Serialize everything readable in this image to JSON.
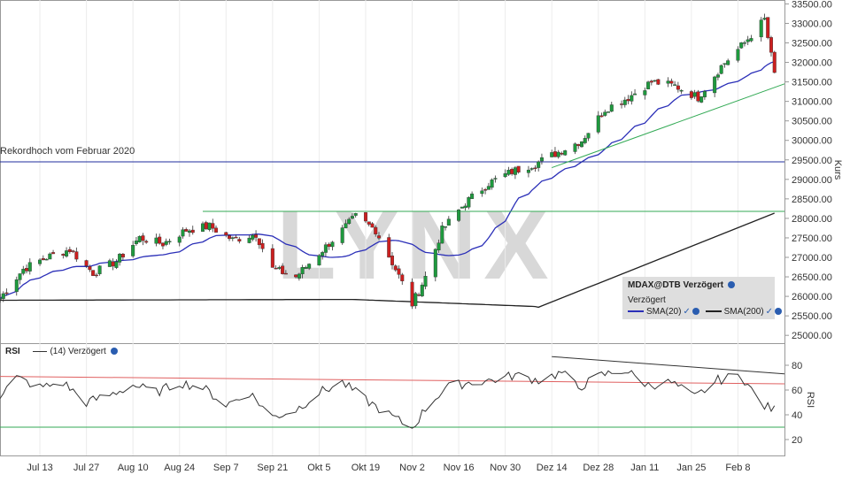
{
  "chart_data": [
    {
      "type": "candlestick",
      "title": "",
      "ylabel": "Kurs",
      "ylim": [
        24800,
        33600
      ],
      "y_ticks": [
        "25000.00",
        "25500.00",
        "26000.00",
        "26500.00",
        "27000.00",
        "27500.00",
        "28000.00",
        "28500.00",
        "29000.00",
        "29500.00",
        "30000.00",
        "30500.00",
        "31000.00",
        "31500.00",
        "32000.00",
        "32500.00",
        "33000.00",
        "33500.00"
      ],
      "x_ticks": [
        {
          "label": "Jul 13",
          "date": "2020-07-13"
        },
        {
          "label": "Jul 27",
          "date": "2020-07-27"
        },
        {
          "label": "Aug 10",
          "date": "2020-08-10"
        },
        {
          "label": "Aug 24",
          "date": "2020-08-24"
        },
        {
          "label": "Sep 7",
          "date": "2020-09-07"
        },
        {
          "label": "Sep 21",
          "date": "2020-09-21"
        },
        {
          "label": "Okt 5",
          "date": "2020-10-05"
        },
        {
          "label": "Okt 19",
          "date": "2020-10-19"
        },
        {
          "label": "Nov 2",
          "date": "2020-11-02"
        },
        {
          "label": "Nov 16",
          "date": "2020-11-16"
        },
        {
          "label": "Nov 30",
          "date": "2020-11-30"
        },
        {
          "label": "Dez 14",
          "date": "2020-12-14"
        },
        {
          "label": "Dez 28",
          "date": "2020-12-28"
        },
        {
          "label": "Jan 11",
          "date": "2021-01-11"
        },
        {
          "label": "Jan 25",
          "date": "2021-01-25"
        },
        {
          "label": "Feb 8",
          "date": "2021-02-08"
        }
      ],
      "x_range": [
        "2020-07-01",
        "2021-02-22"
      ],
      "close_anchors": [
        [
          "2020-07-01",
          25950
        ],
        [
          "2020-07-08",
          26700
        ],
        [
          "2020-07-15",
          27000
        ],
        [
          "2020-07-22",
          27200
        ],
        [
          "2020-07-29",
          26600
        ],
        [
          "2020-08-05",
          26900
        ],
        [
          "2020-08-12",
          27500
        ],
        [
          "2020-08-19",
          27350
        ],
        [
          "2020-08-26",
          27700
        ],
        [
          "2020-09-02",
          27800
        ],
        [
          "2020-09-09",
          27450
        ],
        [
          "2020-09-16",
          27600
        ],
        [
          "2020-09-21",
          26700
        ],
        [
          "2020-09-28",
          26500
        ],
        [
          "2020-10-05",
          27100
        ],
        [
          "2020-10-12",
          27700
        ],
        [
          "2020-10-16",
          28050
        ],
        [
          "2020-10-22",
          27700
        ],
        [
          "2020-10-28",
          26700
        ],
        [
          "2020-11-02",
          25800
        ],
        [
          "2020-11-06",
          26500
        ],
        [
          "2020-11-11",
          27700
        ],
        [
          "2020-11-18",
          28400
        ],
        [
          "2020-11-25",
          28900
        ],
        [
          "2020-12-02",
          29200
        ],
        [
          "2020-12-09",
          29400
        ],
        [
          "2020-12-16",
          29700
        ],
        [
          "2020-12-23",
          30000
        ],
        [
          "2020-12-30",
          30800
        ],
        [
          "2021-01-06",
          31100
        ],
        [
          "2021-01-13",
          31500
        ],
        [
          "2021-01-20",
          31400
        ],
        [
          "2021-01-27",
          31100
        ],
        [
          "2021-02-03",
          31900
        ],
        [
          "2021-02-10",
          32500
        ],
        [
          "2021-02-16",
          33100
        ],
        [
          "2021-02-19",
          31700
        ]
      ],
      "lines": [
        {
          "name": "Rekordhoch vom Februar 2020",
          "value": 29450,
          "color": "#1f2d9c"
        },
        {
          "name": "",
          "value": 28180,
          "color": "#33aa55",
          "from": "2020-08-31"
        }
      ],
      "trendline": {
        "from": [
          "2020-12-14",
          29300
        ],
        "to": [
          "2021-02-22",
          31450
        ],
        "color": "#33aa55"
      },
      "series": [
        {
          "name": "MDAX@DTB Verzögert",
          "kind": "candles",
          "up_color": "#1e9a3e",
          "down_color": "#cc1f1f"
        },
        {
          "name": "SMA(20)",
          "color": "#2b2fb8"
        },
        {
          "name": "SMA(200)",
          "color": "#222222"
        }
      ],
      "legend": {
        "title": "MDAX@DTB Verzögert",
        "subtitle": "Verzögert",
        "position": "bottom-right"
      },
      "annotation": "Rekordhoch vom Februar 2020",
      "watermark": "LYNX"
    },
    {
      "type": "line",
      "title": "RSI",
      "ylabel": "RSI",
      "ylim": [
        10,
        95
      ],
      "y_ticks": [
        "20",
        "40",
        "60",
        "80"
      ],
      "series": [
        {
          "name": "(14) Verzögert",
          "color": "#333333"
        }
      ],
      "rsi_anchors": [
        [
          "2020-07-01",
          56
        ],
        [
          "2020-07-06",
          70
        ],
        [
          "2020-07-13",
          62
        ],
        [
          "2020-07-20",
          66
        ],
        [
          "2020-07-27",
          50
        ],
        [
          "2020-08-03",
          56
        ],
        [
          "2020-08-10",
          64
        ],
        [
          "2020-08-17",
          58
        ],
        [
          "2020-08-24",
          66
        ],
        [
          "2020-08-31",
          62
        ],
        [
          "2020-09-07",
          48
        ],
        [
          "2020-09-14",
          58
        ],
        [
          "2020-09-21",
          38
        ],
        [
          "2020-09-28",
          44
        ],
        [
          "2020-10-05",
          58
        ],
        [
          "2020-10-12",
          66
        ],
        [
          "2020-10-19",
          52
        ],
        [
          "2020-10-26",
          40
        ],
        [
          "2020-11-02",
          29
        ],
        [
          "2020-11-06",
          45
        ],
        [
          "2020-11-12",
          62
        ],
        [
          "2020-11-19",
          66
        ],
        [
          "2020-11-26",
          68
        ],
        [
          "2020-12-03",
          72
        ],
        [
          "2020-12-10",
          68
        ],
        [
          "2020-12-17",
          74
        ],
        [
          "2020-12-22",
          62
        ],
        [
          "2020-12-29",
          72
        ],
        [
          "2021-01-05",
          76
        ],
        [
          "2021-01-12",
          64
        ],
        [
          "2021-01-19",
          66
        ],
        [
          "2021-01-26",
          54
        ],
        [
          "2021-02-02",
          68
        ],
        [
          "2021-02-09",
          72
        ],
        [
          "2021-02-15",
          48
        ],
        [
          "2021-02-19",
          44
        ]
      ],
      "lines": [
        {
          "value": 30,
          "color": "#33aa55"
        },
        {
          "from": [
            "2020-07-01",
            71
          ],
          "to": [
            "2021-02-22",
            65
          ],
          "color": "#e06060"
        },
        {
          "from": [
            "2020-12-14",
            87
          ],
          "to": [
            "2021-02-22",
            73
          ],
          "color": "#333333"
        }
      ]
    }
  ],
  "legend_check_icon": "check-icon",
  "legend_info_icon": "info-icon"
}
